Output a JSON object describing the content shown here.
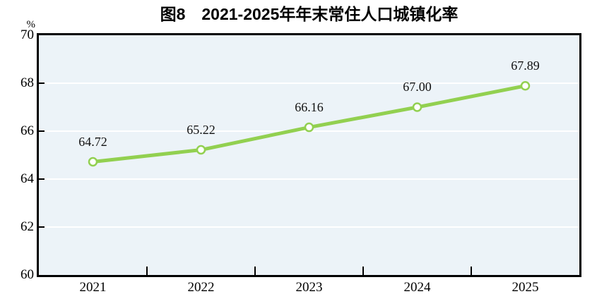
{
  "figure": {
    "title": "图8　2021-2025年年末常住人口城镇化率",
    "unit_label": "%"
  },
  "chart_data": {
    "type": "line",
    "title": "图8　2021-2025年年末常住人口城镇化率",
    "xlabel": "",
    "ylabel": "%",
    "categories": [
      "2021",
      "2022",
      "2023",
      "2024",
      "2025"
    ],
    "values": [
      64.72,
      65.22,
      66.16,
      67.0,
      67.89
    ],
    "point_labels": [
      "64.72",
      "65.22",
      "66.16",
      "67.00",
      "67.89"
    ],
    "ylim": [
      60,
      70
    ],
    "yticks": [
      60,
      62,
      64,
      66,
      68,
      70
    ],
    "grid": "horizontal",
    "legend_position": "none",
    "colors": {
      "line": "#92d050",
      "marker_fill": "#ffffff",
      "marker_stroke": "#92d050",
      "plot_bg": "#ecf3f8",
      "gridline": "#ffffff",
      "axis": "#000000",
      "text": "#000000"
    }
  }
}
